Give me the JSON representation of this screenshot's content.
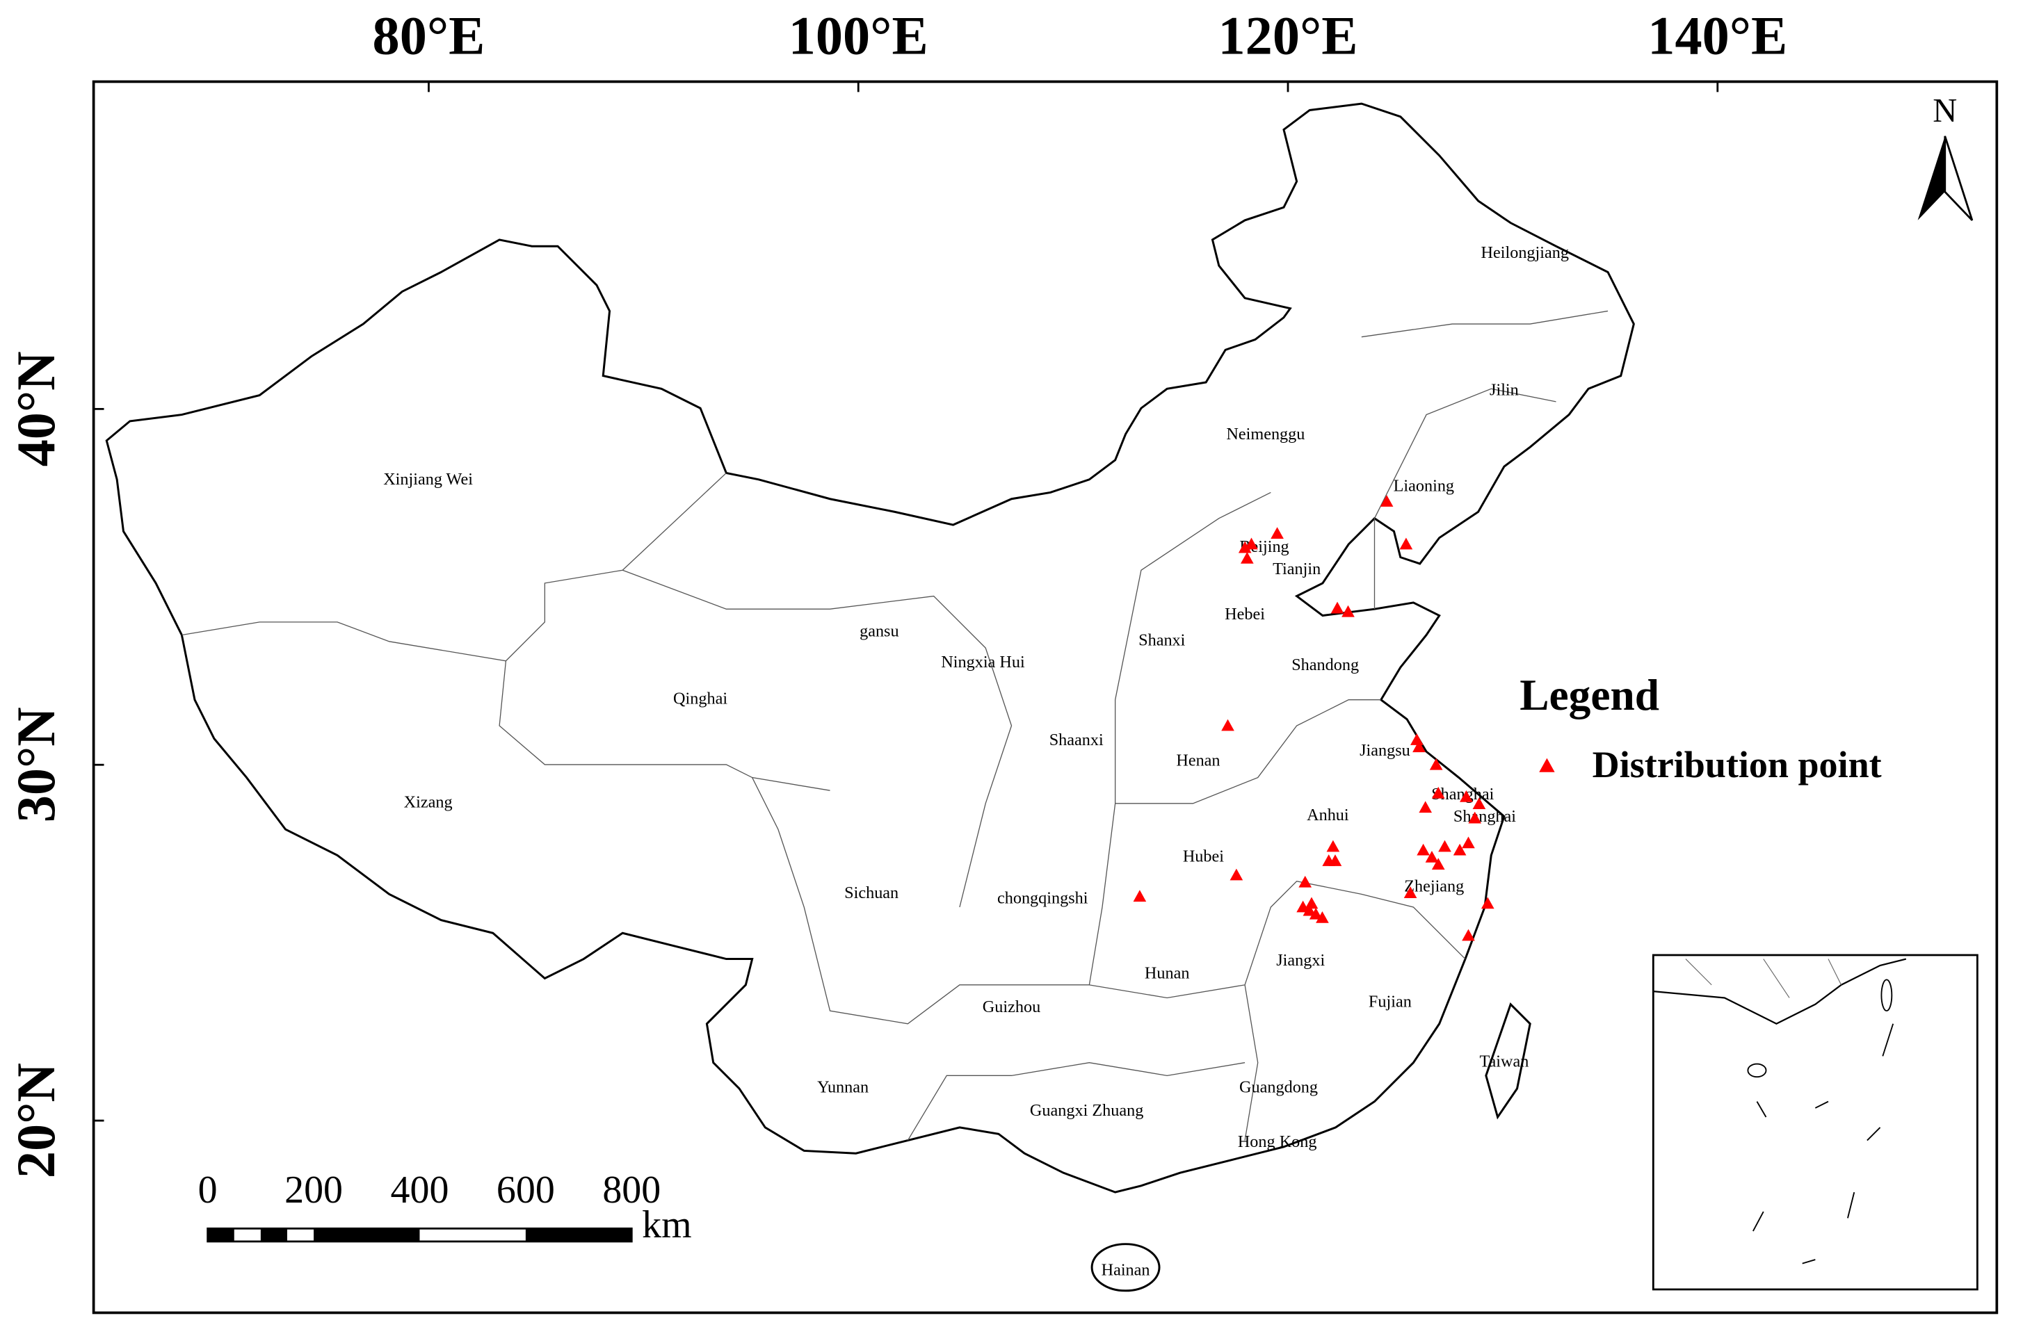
{
  "map": {
    "lon_ticks": [
      {
        "value": 80,
        "label": "80°E"
      },
      {
        "value": 100,
        "label": "100°E"
      },
      {
        "value": 120,
        "label": "120°E"
      },
      {
        "value": 140,
        "label": "140°E"
      }
    ],
    "lat_ticks": [
      {
        "value": 20,
        "label": "20°N"
      },
      {
        "value": 30,
        "label": "30°N"
      },
      {
        "value": 40,
        "label": "40°N"
      }
    ],
    "lon_range": [
      64.4,
      153.0
    ],
    "lat_range": [
      14.6,
      49.2
    ],
    "north": "N",
    "regions": [
      "Heilongjiang",
      "Jilin",
      "Liaoning",
      "Neimenggu",
      "Xinjiang Wei",
      "Beijing",
      "Tianjin",
      "Hebei",
      "Shanxi",
      "Shandong",
      "gansu",
      "Ningxia Hui",
      "Qinghai",
      "Shaanxi",
      "Henan",
      "Jiangsu",
      "Xizang",
      "Shanghai",
      "Shanghai",
      "Anhui",
      "Hubei",
      "Zhejiang",
      "Sichuan",
      "chongqingshi",
      "Hunan",
      "Jiangxi",
      "Guizhou",
      "Fujian",
      "Taiwan",
      "Yunnan",
      "Guangdong",
      "Guangxi Zhuang",
      "Hong Kong",
      "Hainan"
    ],
    "points": [
      {
        "lon": 124.6,
        "lat": 37.4
      },
      {
        "lon": 118.0,
        "lat": 36.1
      },
      {
        "lon": 118.3,
        "lat": 36.2
      },
      {
        "lon": 119.5,
        "lat": 36.5
      },
      {
        "lon": 118.1,
        "lat": 35.8
      },
      {
        "lon": 125.5,
        "lat": 36.2
      },
      {
        "lon": 122.3,
        "lat": 34.4
      },
      {
        "lon": 122.8,
        "lat": 34.3
      },
      {
        "lon": 117.2,
        "lat": 31.1
      },
      {
        "lon": 126.0,
        "lat": 30.7
      },
      {
        "lon": 126.1,
        "lat": 30.5
      },
      {
        "lon": 126.9,
        "lat": 30.0
      },
      {
        "lon": 127.0,
        "lat": 29.2
      },
      {
        "lon": 126.4,
        "lat": 28.8
      },
      {
        "lon": 128.3,
        "lat": 29.1
      },
      {
        "lon": 128.9,
        "lat": 28.9
      },
      {
        "lon": 128.7,
        "lat": 28.5
      },
      {
        "lon": 122.1,
        "lat": 27.7
      },
      {
        "lon": 122.2,
        "lat": 27.3
      },
      {
        "lon": 121.9,
        "lat": 27.3
      },
      {
        "lon": 126.3,
        "lat": 27.6
      },
      {
        "lon": 126.7,
        "lat": 27.4
      },
      {
        "lon": 127.0,
        "lat": 27.2
      },
      {
        "lon": 127.3,
        "lat": 27.7
      },
      {
        "lon": 128.0,
        "lat": 27.6
      },
      {
        "lon": 128.4,
        "lat": 27.8
      },
      {
        "lon": 117.6,
        "lat": 26.9
      },
      {
        "lon": 113.1,
        "lat": 26.3
      },
      {
        "lon": 120.8,
        "lat": 26.7
      },
      {
        "lon": 120.7,
        "lat": 26.0
      },
      {
        "lon": 121.0,
        "lat": 25.9
      },
      {
        "lon": 121.3,
        "lat": 25.8
      },
      {
        "lon": 121.6,
        "lat": 25.7
      },
      {
        "lon": 121.1,
        "lat": 26.1
      },
      {
        "lon": 125.7,
        "lat": 26.4
      },
      {
        "lon": 129.3,
        "lat": 26.1
      },
      {
        "lon": 128.4,
        "lat": 25.2
      }
    ],
    "point_color": "#ff0000",
    "legend": {
      "title": "Legend",
      "label": "Distribution point"
    },
    "scale_bar": {
      "ticks": [
        0,
        200,
        400,
        600,
        800
      ],
      "unit": "km"
    }
  }
}
